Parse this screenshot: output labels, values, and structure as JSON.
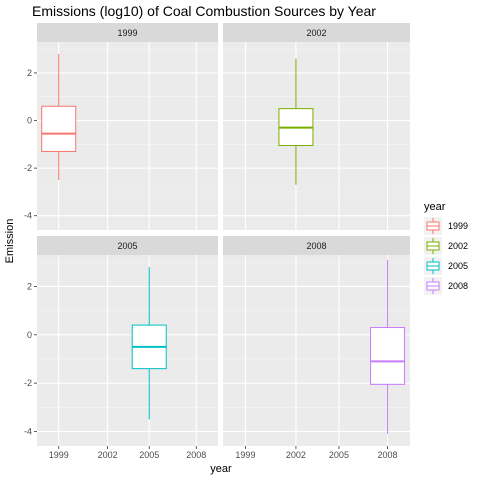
{
  "chart_data": {
    "type": "boxplot",
    "title": "Emissions (log10) of Coal Combustion Sources by Year",
    "xlabel": "year",
    "ylabel": "Emission",
    "x_ticks": [
      "1999",
      "2002",
      "2005",
      "2008"
    ],
    "y_ticks": [
      "-4",
      "-2",
      "0",
      "2"
    ],
    "ylim": [
      -4.6,
      3.3
    ],
    "facets": [
      "1999",
      "2002",
      "2005",
      "2008"
    ],
    "legend": {
      "title": "year",
      "position": "right",
      "entries": [
        "1999",
        "2002",
        "2005",
        "2008"
      ]
    },
    "colors": {
      "1999": "#F8766D",
      "2002": "#7CAE00",
      "2005": "#00BFC4",
      "2008": "#C77CFF"
    },
    "boxes": [
      {
        "year": "1999",
        "x": 1999,
        "min": -2.5,
        "q1": -1.3,
        "median": -0.55,
        "q3": 0.6,
        "max": 2.8
      },
      {
        "year": "2002",
        "x": 2002,
        "min": -2.7,
        "q1": -1.05,
        "median": -0.3,
        "q3": 0.5,
        "max": 2.6
      },
      {
        "year": "2005",
        "x": 2005,
        "min": -3.5,
        "q1": -1.4,
        "median": -0.5,
        "q3": 0.4,
        "max": 2.8
      },
      {
        "year": "2008",
        "x": 2008,
        "min": -4.1,
        "q1": -2.05,
        "median": -1.1,
        "q3": 0.3,
        "max": 3.1
      }
    ]
  }
}
